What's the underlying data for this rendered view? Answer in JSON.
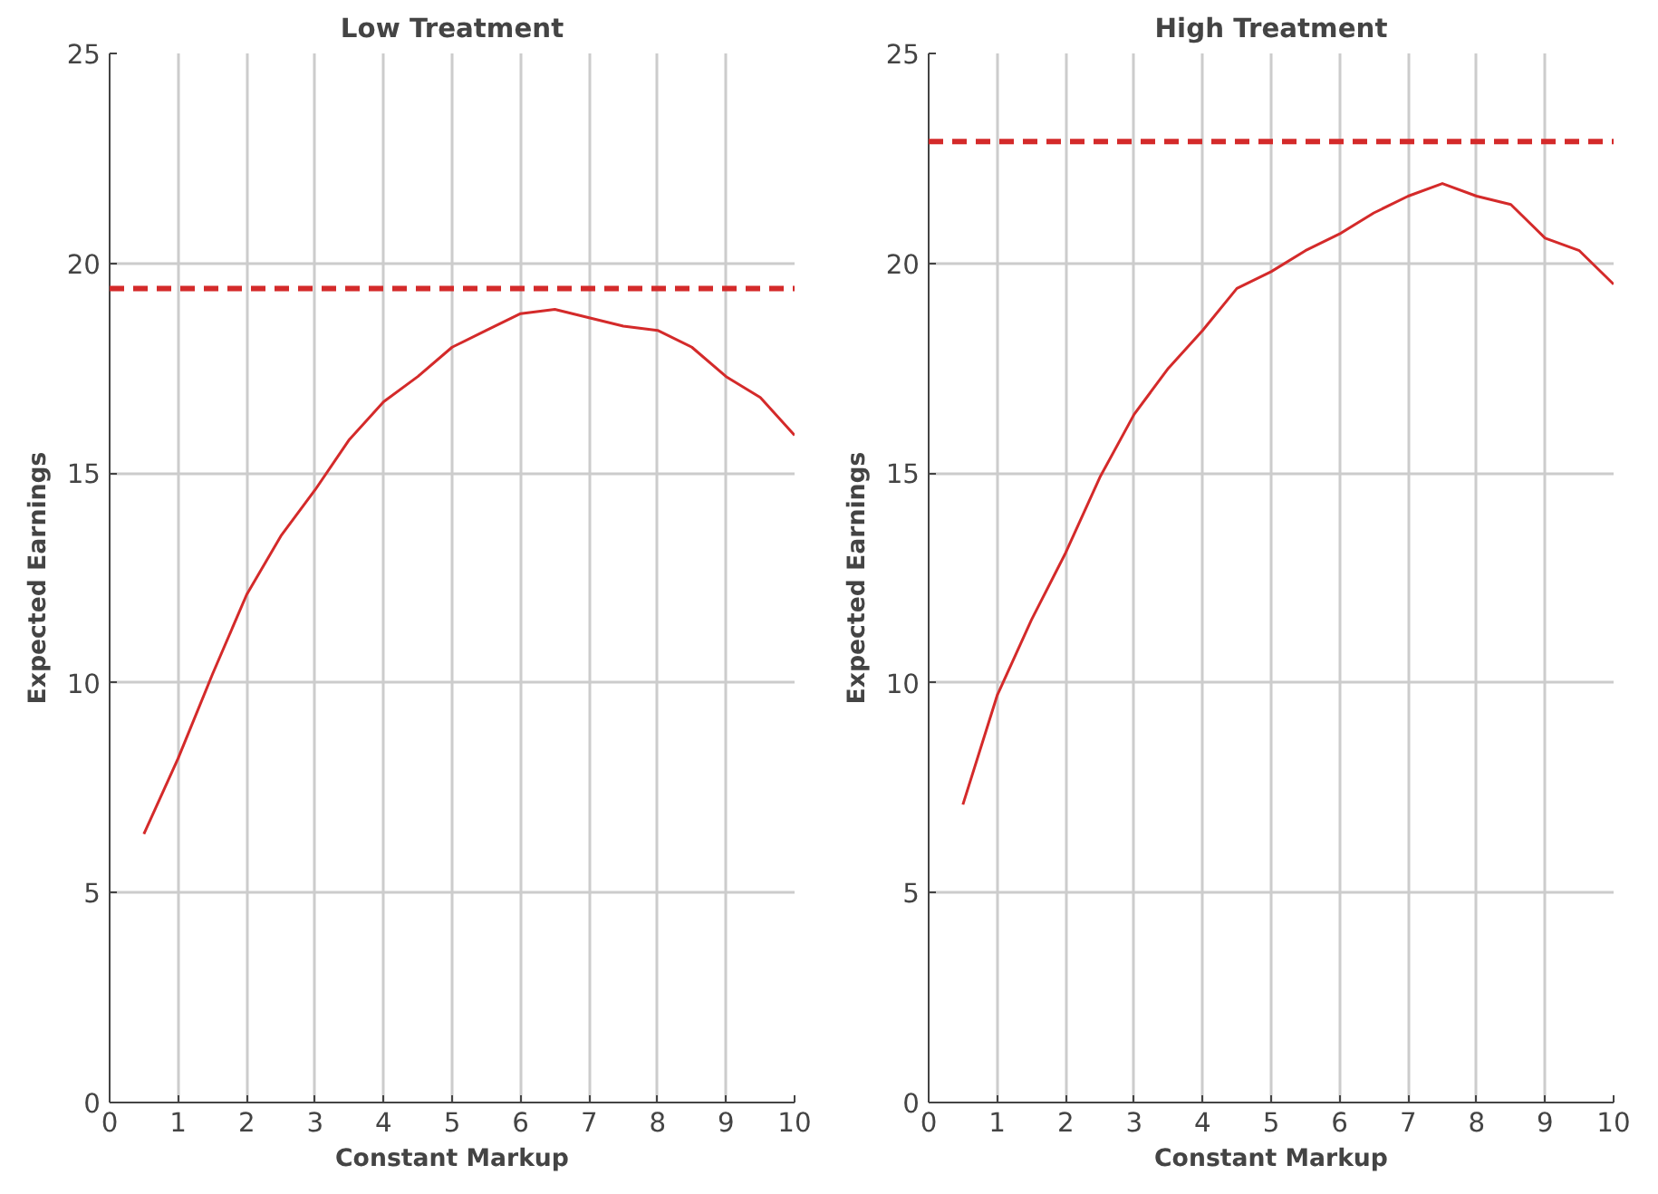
{
  "chart_data": [
    {
      "type": "line",
      "title": "Low Treatment",
      "xlabel": "Constant Markup",
      "ylabel": "Expected Earnings",
      "x": [
        0.5,
        1,
        1.5,
        2,
        2.5,
        3,
        3.5,
        4,
        4.5,
        5,
        5.5,
        6,
        6.5,
        7,
        7.5,
        8,
        8.5,
        9,
        9.5,
        10
      ],
      "series": [
        {
          "color": "#d42a2a",
          "values": [
            6.4,
            8.2,
            10.2,
            12.1,
            13.5,
            14.6,
            15.8,
            16.7,
            17.3,
            18.0,
            18.4,
            18.8,
            18.9,
            18.7,
            18.5,
            18.4,
            18.0,
            17.3,
            16.8,
            15.9
          ]
        }
      ],
      "xlim": [
        0,
        10
      ],
      "ylim": [
        0,
        25
      ],
      "xticks": [
        0,
        1,
        2,
        3,
        4,
        5,
        6,
        7,
        8,
        9,
        10
      ],
      "yticks": [
        0,
        5,
        10,
        15,
        20,
        25
      ],
      "grid": true,
      "ref_lines": [
        {
          "axis": "y",
          "value": 19.4,
          "color": "#d42a2a",
          "line_style": "dashed"
        }
      ]
    },
    {
      "type": "line",
      "title": "High Treatment",
      "xlabel": "Constant Markup",
      "ylabel": "Expected Earnings",
      "x": [
        0.5,
        1,
        1.5,
        2,
        2.5,
        3,
        3.5,
        4,
        4.5,
        5,
        5.5,
        6,
        6.5,
        7,
        7.5,
        8,
        8.5,
        9,
        9.5,
        10
      ],
      "series": [
        {
          "color": "#d42a2a",
          "values": [
            7.1,
            9.7,
            11.5,
            13.1,
            14.9,
            16.4,
            17.5,
            18.4,
            19.4,
            19.8,
            20.3,
            20.7,
            21.2,
            21.6,
            21.9,
            21.6,
            21.4,
            20.6,
            20.3,
            19.5
          ]
        }
      ],
      "xlim": [
        0,
        10
      ],
      "ylim": [
        0,
        25
      ],
      "xticks": [
        0,
        1,
        2,
        3,
        4,
        5,
        6,
        7,
        8,
        9,
        10
      ],
      "yticks": [
        0,
        5,
        10,
        15,
        20,
        25
      ],
      "grid": true,
      "ref_lines": [
        {
          "axis": "y",
          "value": 22.9,
          "color": "#d42a2a",
          "line_style": "dashed"
        }
      ]
    }
  ]
}
